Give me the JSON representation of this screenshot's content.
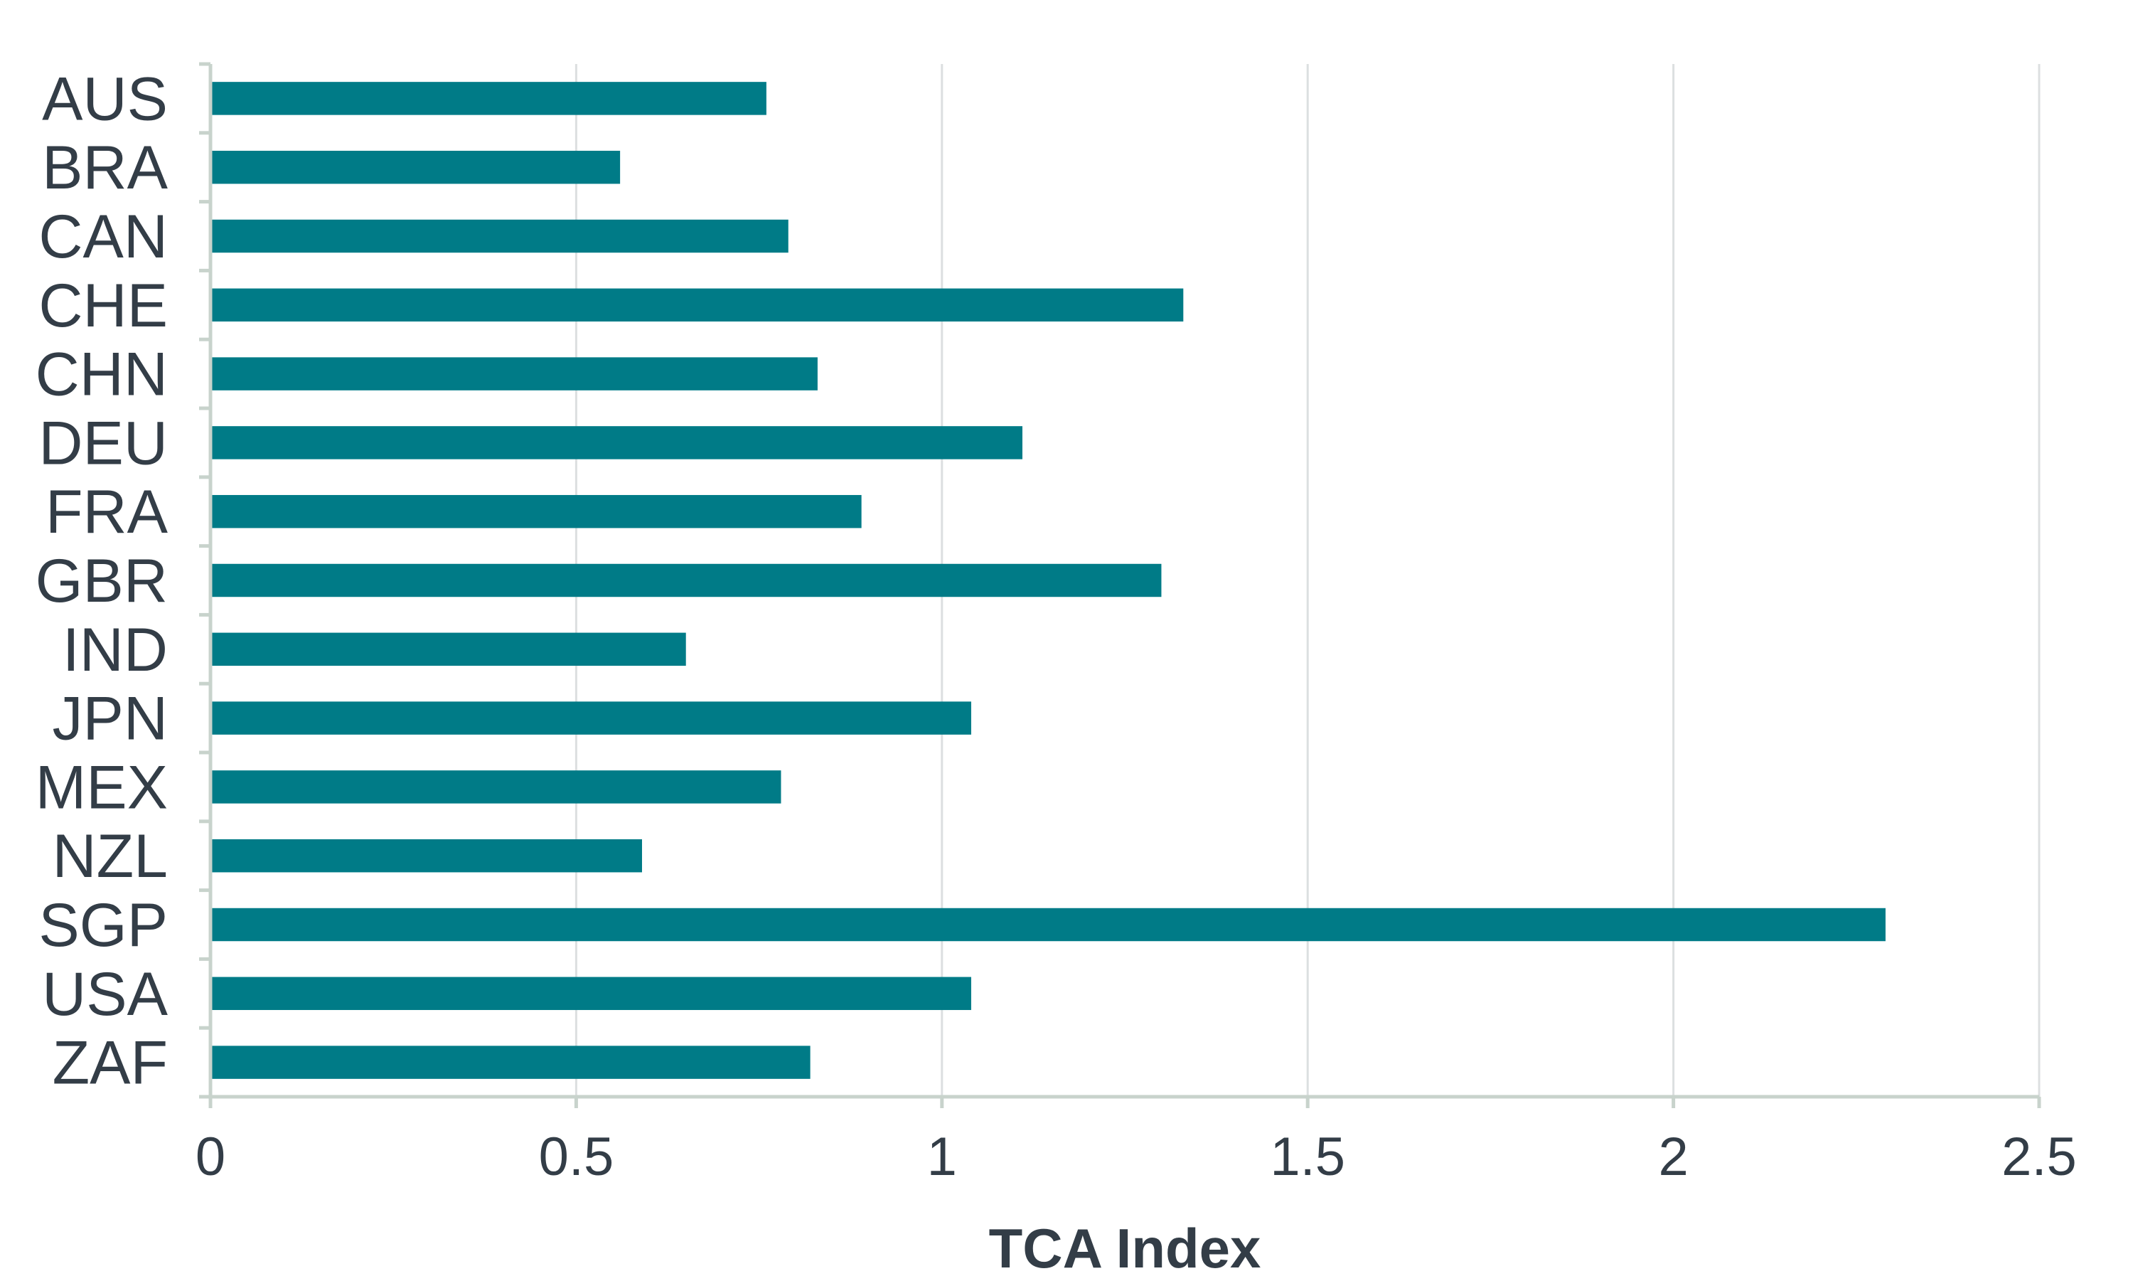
{
  "chart_data": {
    "type": "bar",
    "orientation": "horizontal",
    "categories": [
      "AUS",
      "BRA",
      "CAN",
      "CHE",
      "CHN",
      "DEU",
      "FRA",
      "GBR",
      "IND",
      "JPN",
      "MEX",
      "NZL",
      "SGP",
      "USA",
      "ZAF"
    ],
    "values": [
      0.76,
      0.56,
      0.79,
      1.33,
      0.83,
      1.11,
      0.89,
      1.3,
      0.65,
      1.04,
      0.78,
      0.59,
      2.29,
      1.04,
      0.82
    ],
    "xlabel": "TCA Index",
    "ylabel": "",
    "xlim": [
      0,
      2.5
    ],
    "xticks": [
      0,
      0.5,
      1,
      1.5,
      2,
      2.5
    ],
    "xtick_labels": [
      "0",
      "0.5",
      "1",
      "1.5",
      "2",
      "2.5"
    ],
    "grid": "vertical",
    "legend": "none",
    "colors": {
      "bar": "#007b87",
      "grid": "#dcdfe0",
      "axis": "#c8d3cc",
      "text": "#333d47"
    }
  }
}
